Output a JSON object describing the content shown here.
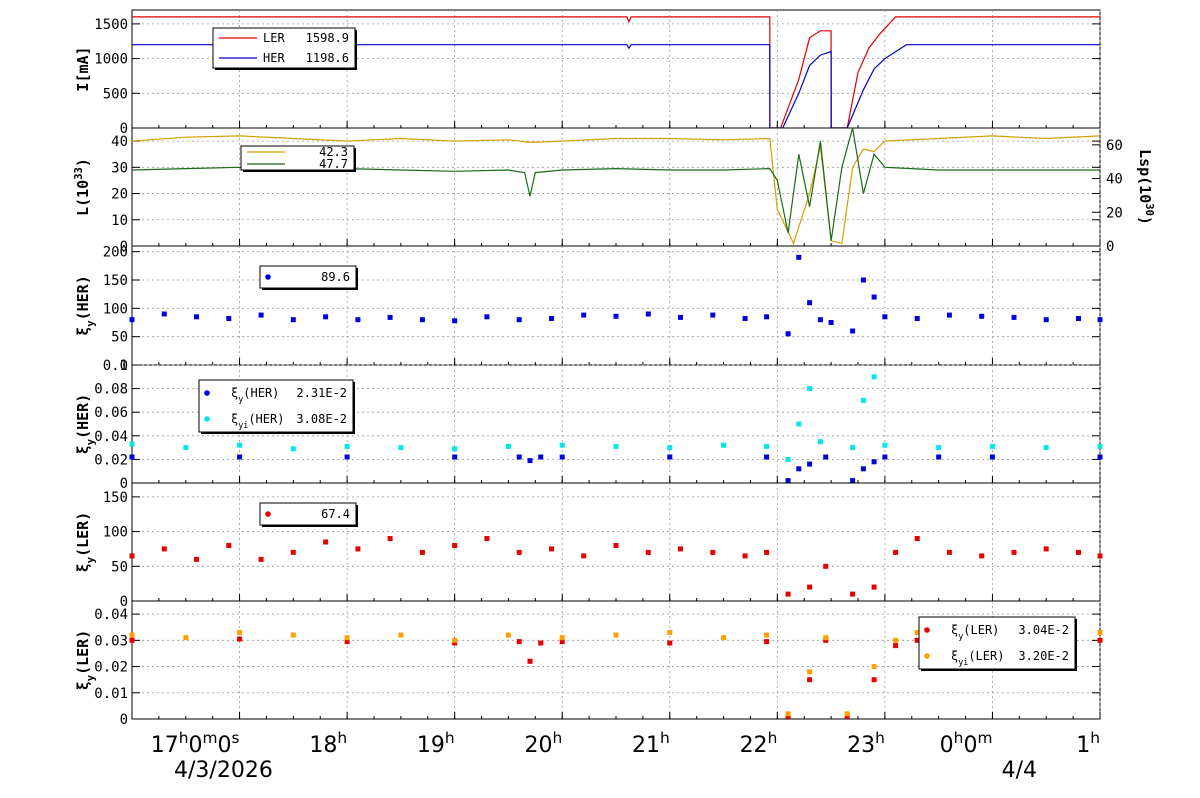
{
  "chart_data": [
    {
      "id": "current",
      "type": "line",
      "ylabel": "I[mA]",
      "ylim": [
        0,
        1700
      ],
      "yticks": [
        "0",
        "500",
        "1000",
        "1500"
      ],
      "legend": [
        {
          "label": "LER",
          "value": "1598.9",
          "color": "#e00000"
        },
        {
          "label": "HER",
          "value": "1198.6",
          "color": "#0000c8"
        }
      ],
      "series": [
        {
          "name": "LER",
          "color": "#e00000",
          "x": [
            16.0,
            20.6,
            20.62,
            20.64,
            21.93,
            21.931,
            22.03,
            22.2,
            22.3,
            22.4,
            22.5,
            22.501,
            22.65,
            22.75,
            22.85,
            22.95,
            23.1,
            24.0,
            25.0
          ],
          "y": [
            1600,
            1600,
            1530,
            1600,
            1600,
            0,
            0,
            700,
            1300,
            1400,
            1400,
            0,
            0,
            800,
            1150,
            1350,
            1600,
            1600,
            1600
          ]
        },
        {
          "name": "HER",
          "color": "#0000c8",
          "x": [
            16.0,
            20.6,
            20.62,
            20.64,
            21.93,
            21.931,
            22.05,
            22.2,
            22.3,
            22.4,
            22.5,
            22.501,
            22.65,
            22.8,
            22.9,
            23.0,
            23.2,
            24.0,
            25.0
          ],
          "y": [
            1200,
            1200,
            1150,
            1200,
            1200,
            0,
            0,
            500,
            900,
            1050,
            1100,
            0,
            0,
            550,
            850,
            1000,
            1200,
            1200,
            1200
          ]
        }
      ]
    },
    {
      "id": "luminosity",
      "type": "line",
      "ylabel": "L(10^33)",
      "y2label": "Lsp(10^30)",
      "ylim": [
        0,
        45
      ],
      "y2lim": [
        0,
        70
      ],
      "yticks": [
        "0",
        "10",
        "20",
        "30",
        "40"
      ],
      "y2ticks": [
        "0",
        "20",
        "40",
        "60"
      ],
      "legend": [
        {
          "label": "",
          "value": "42.3",
          "color": "#d4a000"
        },
        {
          "label": "",
          "value": "47.7",
          "color": "#1a6b1a"
        }
      ],
      "series": [
        {
          "name": "",
          "color": "#d4a000",
          "axis": "left",
          "x": [
            16.0,
            16.5,
            17.0,
            17.5,
            18.0,
            18.5,
            19.0,
            19.5,
            19.7,
            20.0,
            20.5,
            21.0,
            21.5,
            21.93,
            22.0,
            22.15,
            22.3,
            22.4,
            22.5,
            22.6,
            22.7,
            22.8,
            22.9,
            23.0,
            23.5,
            24.0,
            24.5,
            25.0
          ],
          "y": [
            40,
            41.5,
            42,
            41,
            40,
            41,
            40,
            40.5,
            39.5,
            40,
            41,
            41,
            40.5,
            41,
            14,
            1,
            20,
            38,
            2,
            1,
            30,
            37,
            36,
            40,
            41,
            42,
            41,
            42
          ]
        },
        {
          "name": "",
          "color": "#1a6b1a",
          "axis": "left",
          "x": [
            16.0,
            16.5,
            17.0,
            17.5,
            18.0,
            18.5,
            19.0,
            19.5,
            19.65,
            19.7,
            19.75,
            20.0,
            20.5,
            21.0,
            21.5,
            21.93,
            22.0,
            22.1,
            22.2,
            22.3,
            22.4,
            22.5,
            22.6,
            22.7,
            22.8,
            22.9,
            23.0,
            23.5,
            24.0,
            24.5,
            25.0
          ],
          "y": [
            29,
            29.5,
            30,
            29,
            29.5,
            29,
            28.5,
            29,
            28,
            19,
            28,
            29,
            29.5,
            29,
            29,
            29.5,
            25,
            5,
            35,
            15,
            40,
            2,
            30,
            45,
            20,
            35,
            30,
            29,
            29,
            29,
            29
          ]
        }
      ]
    },
    {
      "id": "xi_y_her_scan",
      "type": "scatter",
      "ylabel": "ξy(HER)",
      "ylim": [
        0,
        210
      ],
      "yticks": [
        "0",
        "50",
        "100",
        "150",
        "200"
      ],
      "legend": [
        {
          "label": "",
          "value": "89.6",
          "color": "#0000e0"
        }
      ],
      "series": [
        {
          "name": "",
          "color": "#0000e0",
          "x": [
            16.0,
            16.3,
            16.6,
            16.9,
            17.2,
            17.5,
            17.8,
            18.1,
            18.4,
            18.7,
            19.0,
            19.3,
            19.6,
            19.9,
            20.2,
            20.5,
            20.8,
            21.1,
            21.4,
            21.7,
            21.9,
            22.1,
            22.2,
            22.3,
            22.4,
            22.5,
            22.7,
            22.8,
            22.9,
            23.0,
            23.3,
            23.6,
            23.9,
            24.2,
            24.5,
            24.8,
            25.0
          ],
          "y": [
            80,
            90,
            85,
            82,
            88,
            80,
            85,
            80,
            84,
            80,
            78,
            85,
            80,
            82,
            88,
            86,
            90,
            84,
            88,
            82,
            85,
            55,
            190,
            110,
            80,
            75,
            60,
            150,
            120,
            85,
            82,
            88,
            86,
            84,
            80,
            82,
            80
          ]
        }
      ]
    },
    {
      "id": "xi_y_her",
      "type": "scatter",
      "ylabel": "ξy(HER)",
      "ylim": [
        0,
        0.1
      ],
      "yticks": [
        "0",
        "0.02",
        "0.04",
        "0.06",
        "0.08",
        "0.1"
      ],
      "legend": [
        {
          "label": "ξy(HER)",
          "value": "2.31E-2",
          "color": "#0000e0"
        },
        {
          "label": "ξyi(HER)",
          "value": "3.08E-2",
          "color": "#00e8e8"
        }
      ],
      "series": [
        {
          "name": "ξy(HER)",
          "color": "#0000e0",
          "x": [
            16.0,
            17.0,
            18.0,
            19.0,
            19.6,
            19.7,
            19.8,
            20.0,
            21.0,
            21.9,
            22.1,
            22.2,
            22.3,
            22.45,
            22.7,
            22.8,
            22.9,
            23.0,
            23.5,
            24.0,
            25.0
          ],
          "y": [
            0.022,
            0.022,
            0.022,
            0.022,
            0.022,
            0.019,
            0.022,
            0.022,
            0.022,
            0.022,
            0.002,
            0.012,
            0.016,
            0.022,
            0.002,
            0.012,
            0.018,
            0.022,
            0.022,
            0.022,
            0.022
          ]
        },
        {
          "name": "ξyi(HER)",
          "color": "#00e8e8",
          "x": [
            16.0,
            16.5,
            17.0,
            17.5,
            18.0,
            18.5,
            19.0,
            19.5,
            20.0,
            20.5,
            21.0,
            21.5,
            21.9,
            22.1,
            22.2,
            22.3,
            22.4,
            22.7,
            22.8,
            22.9,
            23.0,
            23.5,
            24.0,
            24.5,
            25.0
          ],
          "y": [
            0.033,
            0.03,
            0.032,
            0.029,
            0.031,
            0.03,
            0.029,
            0.031,
            0.032,
            0.031,
            0.03,
            0.032,
            0.031,
            0.02,
            0.05,
            0.08,
            0.035,
            0.03,
            0.07,
            0.09,
            0.032,
            0.03,
            0.031,
            0.03,
            0.031
          ]
        }
      ]
    },
    {
      "id": "xi_y_ler_scan",
      "type": "scatter",
      "ylabel": "ξy(LER)",
      "ylim": [
        0,
        170
      ],
      "yticks": [
        "0",
        "50",
        "100",
        "150"
      ],
      "legend": [
        {
          "label": "",
          "value": "67.4",
          "color": "#e80000"
        }
      ],
      "series": [
        {
          "name": "",
          "color": "#e80000",
          "x": [
            16.0,
            16.3,
            16.6,
            16.9,
            17.2,
            17.5,
            17.8,
            18.1,
            18.4,
            18.7,
            19.0,
            19.3,
            19.6,
            19.9,
            20.2,
            20.5,
            20.8,
            21.1,
            21.4,
            21.7,
            21.9,
            22.1,
            22.3,
            22.45,
            22.7,
            22.9,
            23.1,
            23.3,
            23.6,
            23.9,
            24.2,
            24.5,
            24.8,
            25.0
          ],
          "y": [
            65,
            75,
            60,
            80,
            60,
            70,
            85,
            75,
            90,
            70,
            80,
            90,
            70,
            75,
            65,
            80,
            70,
            75,
            70,
            65,
            70,
            10,
            20,
            50,
            10,
            20,
            70,
            90,
            70,
            65,
            70,
            75,
            70,
            65
          ]
        }
      ]
    },
    {
      "id": "xi_y_ler",
      "type": "scatter",
      "ylabel": "ξy(LER)",
      "ylim": [
        0,
        0.045
      ],
      "yticks": [
        "0",
        "0.01",
        "0.02",
        "0.03",
        "0.04"
      ],
      "legend": [
        {
          "label": "ξy(LER)",
          "value": "3.04E-2",
          "color": "#e80000"
        },
        {
          "label": "ξyi(LER)",
          "value": "3.20E-2",
          "color": "#ffa000"
        }
      ],
      "series": [
        {
          "name": "ξy(LER)",
          "color": "#e80000",
          "x": [
            16.0,
            17.0,
            18.0,
            19.0,
            19.6,
            19.7,
            19.8,
            20.0,
            21.0,
            21.9,
            22.1,
            22.3,
            22.45,
            22.65,
            22.9,
            23.1,
            23.3,
            24.0,
            25.0
          ],
          "y": [
            0.03,
            0.0305,
            0.0295,
            0.029,
            0.0295,
            0.022,
            0.029,
            0.0295,
            0.029,
            0.0295,
            0.001,
            0.015,
            0.03,
            0.001,
            0.015,
            0.028,
            0.03,
            0.03,
            0.03
          ]
        },
        {
          "name": "ξyi(LER)",
          "color": "#ffa000",
          "x": [
            16.0,
            16.5,
            17.0,
            17.5,
            18.0,
            18.5,
            19.0,
            19.5,
            20.0,
            20.5,
            21.0,
            21.5,
            21.9,
            22.1,
            22.3,
            22.45,
            22.65,
            22.9,
            23.1,
            23.3,
            23.6,
            24.0,
            24.5,
            25.0
          ],
          "y": [
            0.032,
            0.031,
            0.033,
            0.032,
            0.031,
            0.032,
            0.03,
            0.032,
            0.031,
            0.032,
            0.033,
            0.031,
            0.032,
            0.002,
            0.018,
            0.031,
            0.002,
            0.02,
            0.03,
            0.033,
            0.032,
            0.033,
            0.032,
            0.033
          ]
        }
      ]
    }
  ],
  "x_axis": {
    "range": [
      16.0,
      25.0
    ],
    "ticks": [
      {
        "x": 17.0,
        "label": "17h0m0s"
      },
      {
        "x": 18.0,
        "label": "18h"
      },
      {
        "x": 19.0,
        "label": "19h"
      },
      {
        "x": 20.0,
        "label": "20h"
      },
      {
        "x": 21.0,
        "label": "21h"
      },
      {
        "x": 22.0,
        "label": "22h"
      },
      {
        "x": 23.0,
        "label": "23h"
      },
      {
        "x": 24.0,
        "label": "0h0m"
      },
      {
        "x": 25.0,
        "label": "1h"
      }
    ],
    "dates": [
      {
        "x": 16.85,
        "label": "4/3/2026"
      },
      {
        "x": 24.25,
        "label": "4/4"
      }
    ]
  }
}
